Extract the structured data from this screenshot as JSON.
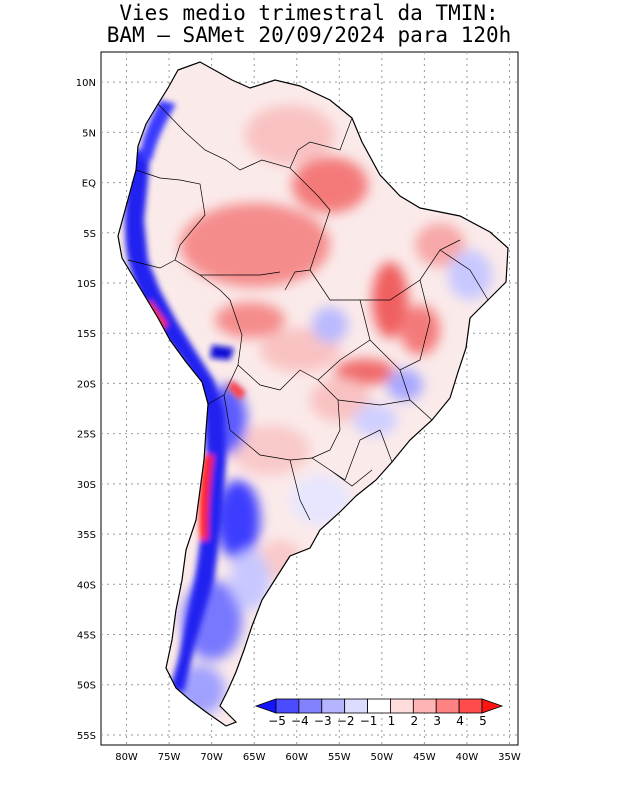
{
  "title": {
    "line1": "Vies medio trimestral da TMIN:",
    "line2": "BAM – SAMet 20/09/2024  para 120h"
  },
  "map": {
    "lon_range": [
      -83,
      -34
    ],
    "lat_range": [
      -56,
      13
    ],
    "lon_ticks": [
      "80W",
      "75W",
      "70W",
      "65W",
      "60W",
      "55W",
      "50W",
      "45W",
      "40W",
      "35W"
    ],
    "lat_ticks": [
      "10N",
      "5N",
      "EQ",
      "5S",
      "10S",
      "15S",
      "20S",
      "25S",
      "30S",
      "35S",
      "40S",
      "45S",
      "50S",
      "55S"
    ],
    "grid": "dotted",
    "region": "South America"
  },
  "colorbar": {
    "labels": [
      "−5",
      "−4",
      "−3",
      "−2",
      "−1",
      "1",
      "2",
      "3",
      "4",
      "5"
    ],
    "colors": [
      "#1414ff",
      "#4b4bff",
      "#8282ff",
      "#b4b4ff",
      "#dcdcff",
      "#ffffff",
      "#ffdcdc",
      "#ffb4b4",
      "#ff8282",
      "#ff4b4b",
      "#ff1414"
    ],
    "extend": "both"
  }
}
